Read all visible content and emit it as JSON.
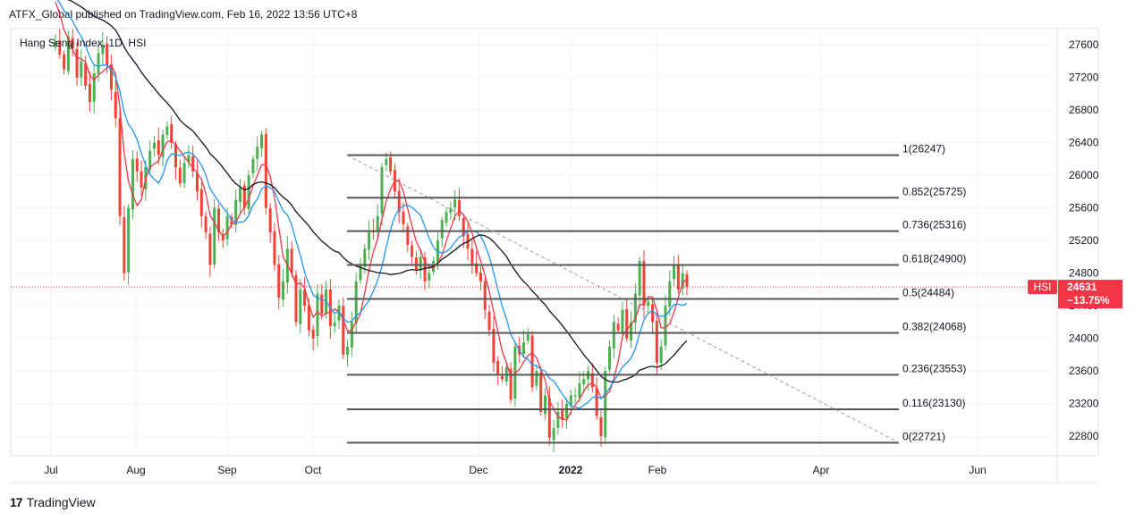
{
  "header": {
    "publish_line": "ATFX_Global published on TradingView.com, Feb 16, 2022 13:56 UTC+8"
  },
  "footer": {
    "brand": "TradingView",
    "logo_glyph": "17"
  },
  "colors": {
    "up": "#26a69a",
    "down": "#ef5350",
    "candle_up": "#4caf50",
    "candle_down": "#f44336",
    "ma_fast": "#f23645",
    "ma_mid": "#2196f3",
    "ma_slow": "#131722",
    "fib_line": "#555555",
    "trend_line": "#9e9e9e",
    "price_label_bg": "#f23645",
    "grid": "#f0f3fa"
  },
  "chart_data": {
    "type": "line",
    "title": "Hang Seng Index, 1D, HSI",
    "symbol": "HSI",
    "interval": "1D",
    "y_axis": {
      "range": [
        22560,
        27800
      ],
      "ticks": [
        22800,
        23200,
        23600,
        24000,
        24400,
        24800,
        25200,
        25600,
        26000,
        26400,
        26800,
        27200,
        27600
      ],
      "position": "right"
    },
    "x_axis": {
      "tick_labels": [
        "Jul",
        "Aug",
        "Sep",
        "Oct",
        "Dec",
        "2022",
        "Feb",
        "Apr",
        "Jun"
      ],
      "bold_labels": [
        "2022"
      ]
    },
    "grid": true,
    "last_price": {
      "symbol": "HSI",
      "price": "24631",
      "change": "−13.75%",
      "value": 24631
    },
    "fibonacci": [
      {
        "label": "1(26247)",
        "ratio": 1,
        "value": 26247
      },
      {
        "label": "0.852(25725)",
        "ratio": 0.852,
        "value": 25725
      },
      {
        "label": "0.736(25316)",
        "ratio": 0.736,
        "value": 25316
      },
      {
        "label": "0.618(24900)",
        "ratio": 0.618,
        "value": 24900
      },
      {
        "label": "0.5(24484)",
        "ratio": 0.5,
        "value": 24484
      },
      {
        "label": "0.382(24068)",
        "ratio": 0.382,
        "value": 24068
      },
      {
        "label": "0.236(23553)",
        "ratio": 0.236,
        "value": 23553
      },
      {
        "label": "0.116(23130)",
        "ratio": 0.116,
        "value": 23130
      },
      {
        "label": "0(22721)",
        "ratio": 0,
        "value": 22721
      }
    ],
    "trend_line": {
      "from": 26247,
      "to": 22721,
      "style": "dashed"
    },
    "candles_close": [
      27650,
      27480,
      27300,
      27700,
      27550,
      27200,
      27400,
      27100,
      26900,
      27250,
      27500,
      27600,
      27350,
      27050,
      26700,
      25500,
      24800,
      25600,
      26200,
      26050,
      25850,
      26100,
      26300,
      26400,
      26250,
      26500,
      26600,
      26400,
      26100,
      25900,
      26150,
      26250,
      26050,
      25800,
      25500,
      25300,
      24900,
      25600,
      25300,
      25200,
      25500,
      25400,
      25700,
      25850,
      25600,
      26000,
      26200,
      26350,
      26500,
      25600,
      25300,
      24900,
      24500,
      24700,
      25100,
      24800,
      24200,
      24600,
      24400,
      24100,
      24000,
      24550,
      24300,
      24600,
      24150,
      24200,
      24400,
      23800,
      23900,
      24200,
      24700,
      24900,
      25100,
      25300,
      25300,
      25500,
      26100,
      26200,
      26050,
      25800,
      25550,
      25400,
      25150,
      25000,
      24850,
      25000,
      24700,
      24800,
      24950,
      25200,
      25450,
      25550,
      25600,
      25700,
      25500,
      25250,
      25100,
      24900,
      24800,
      24700,
      24350,
      24100,
      23700,
      23550,
      23500,
      23650,
      23250,
      23900,
      23800,
      23950,
      24050,
      23400,
      23600,
      23100,
      23300,
      22780,
      22900,
      23100,
      23000,
      23200,
      23300,
      23300,
      23450,
      23500,
      23600,
      23400,
      23050,
      22800,
      23600,
      23900,
      24200,
      24100,
      24350,
      24000,
      24200,
      24550,
      24950,
      24400,
      24450,
      24200,
      23700,
      23900,
      24400,
      24700,
      24900,
      24600,
      24800,
      24631
    ],
    "series": [
      {
        "name": "",
        "color": "#f23645",
        "values": []
      },
      {
        "name": "",
        "color": "#2196f3",
        "values": []
      },
      {
        "name": "",
        "color": "#131722",
        "values": []
      }
    ]
  }
}
